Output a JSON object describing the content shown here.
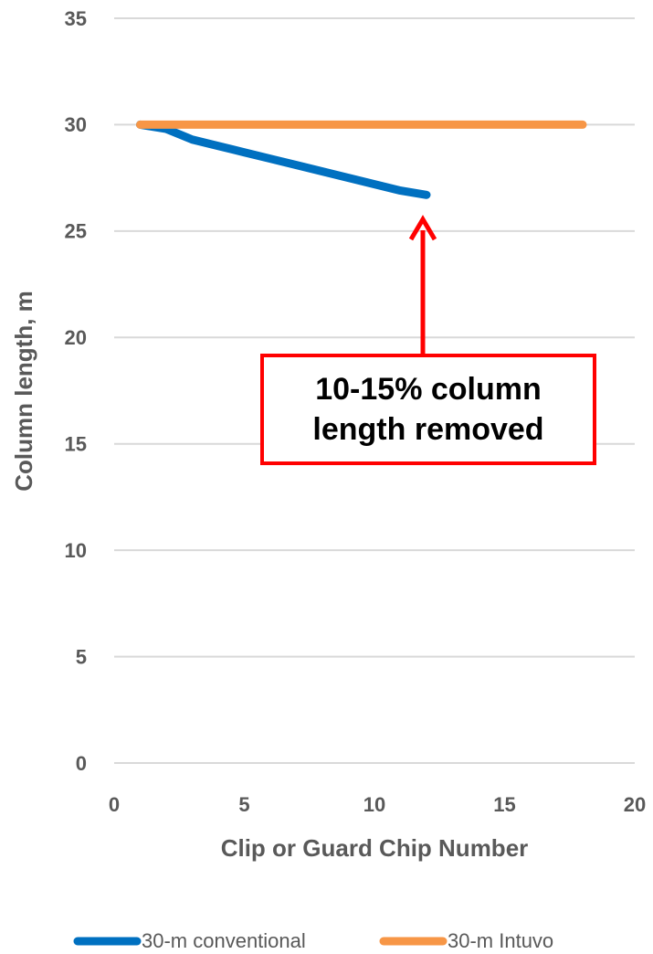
{
  "chart_data": {
    "type": "line",
    "x_label": "Clip or Guard Chip Number",
    "y_label": "Column length,  m",
    "xlim": [
      0,
      20
    ],
    "xticks": [
      0,
      5,
      10,
      15,
      20
    ],
    "ylim": [
      0,
      35
    ],
    "yticks": [
      0,
      5,
      10,
      15,
      20,
      25,
      30,
      35
    ],
    "grid": true,
    "legend": "bottom",
    "series": [
      {
        "name": "30-m conventional",
        "color": "#0070c0",
        "x": [
          1,
          2,
          3,
          4,
          5,
          6,
          7,
          8,
          9,
          10,
          11,
          12
        ],
        "values": [
          30,
          29.8,
          29.3,
          29.0,
          28.7,
          28.4,
          28.1,
          27.8,
          27.5,
          27.2,
          26.9,
          26.7
        ]
      },
      {
        "name": "30-m Intuvo",
        "color": "#f79646",
        "x": [
          1,
          2,
          3,
          4,
          5,
          6,
          7,
          8,
          9,
          10,
          11,
          12,
          13,
          14,
          15,
          16,
          17,
          18
        ],
        "values": [
          30,
          30,
          30,
          30,
          30,
          30,
          30,
          30,
          30,
          30,
          30,
          30,
          30,
          30,
          30,
          30,
          30,
          30
        ]
      }
    ],
    "annotation": [
      "10-15% column",
      "length removed"
    ]
  }
}
